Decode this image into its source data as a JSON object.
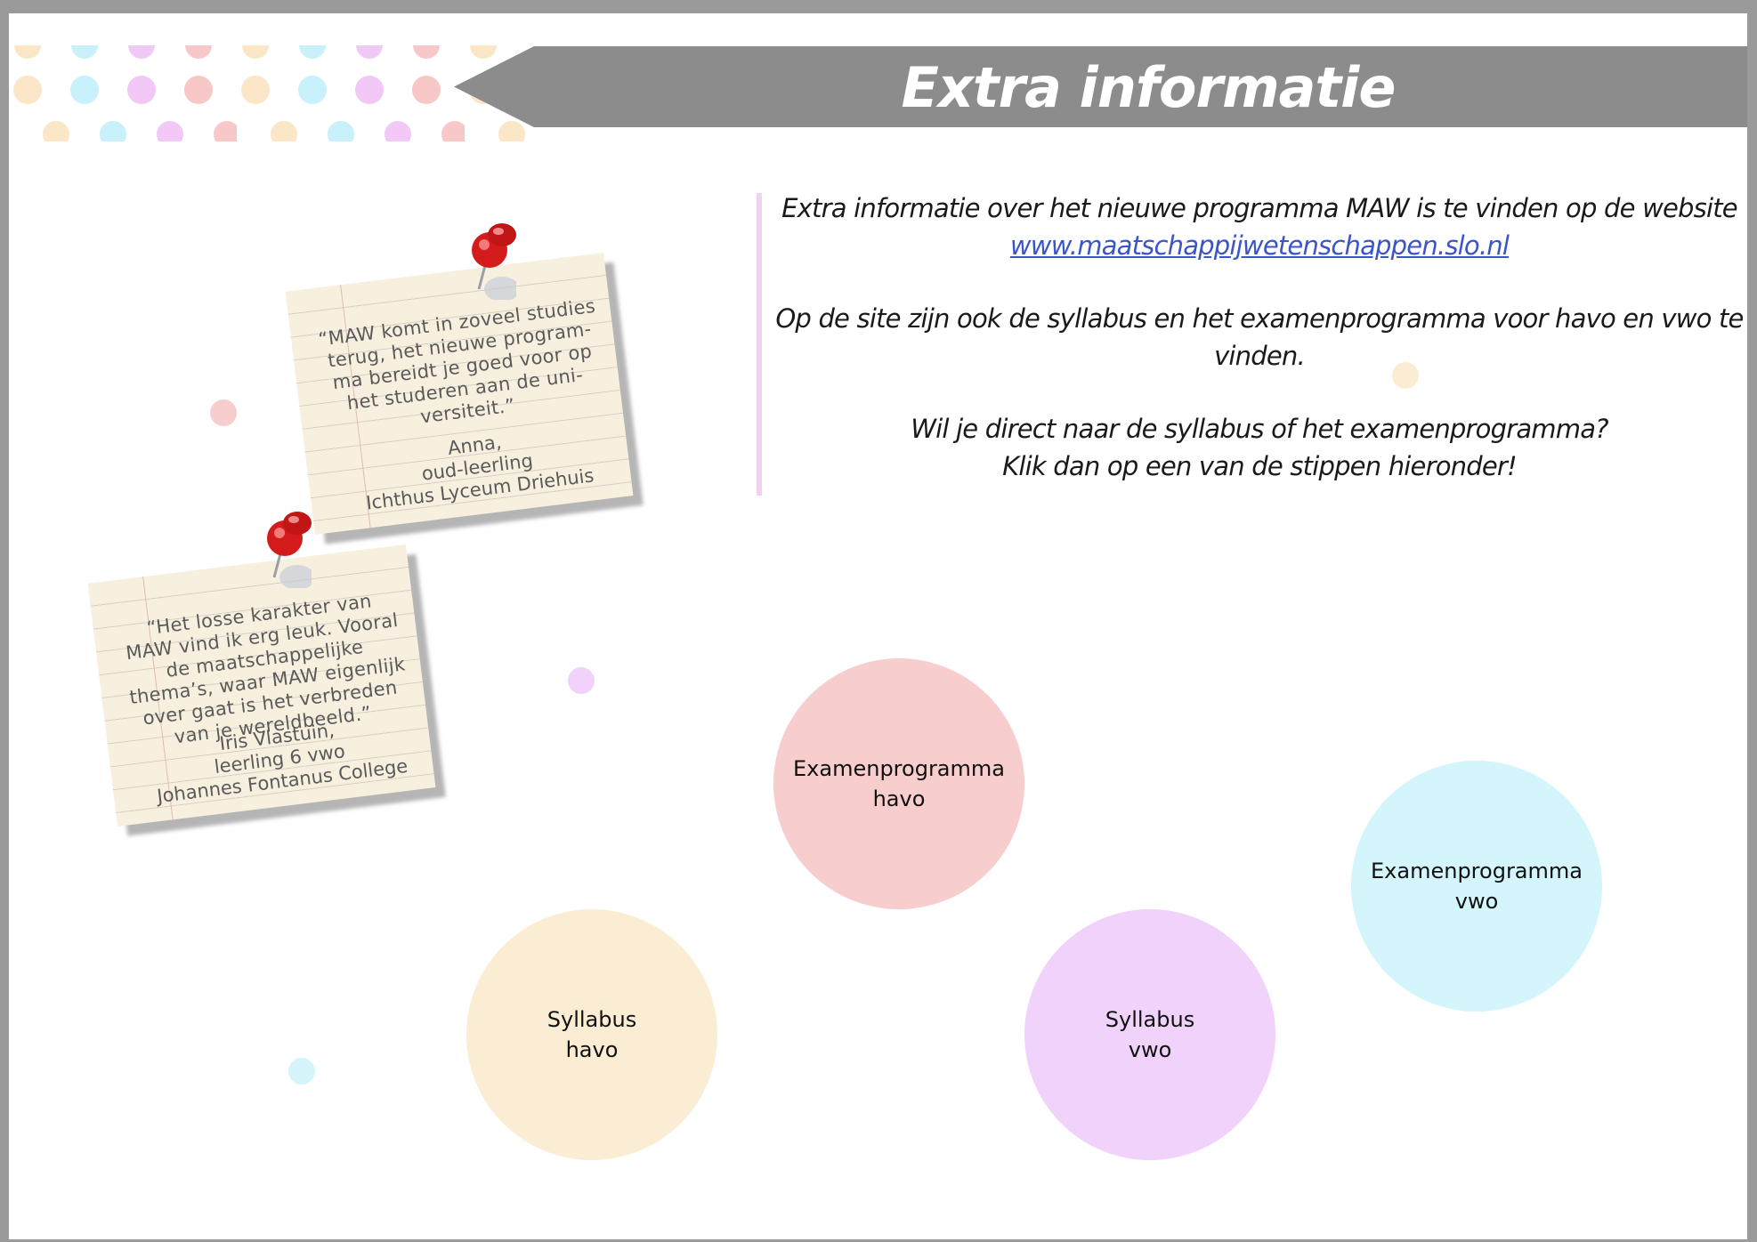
{
  "header": {
    "title": "Extra informatie"
  },
  "info": {
    "line1": "Extra informatie over het nieuwe programma MAW is te vinden op de website",
    "link_text": "www.maatschappijwetenschappen.slo.nl",
    "line2": "Op de site zijn ook de syllabus en het examenprogramma voor havo en vwo te vinden.",
    "line3a": "Wil je direct naar de syllabus of het examenprogramma?",
    "line3b": "Klik dan op een van de stippen hieronder!"
  },
  "notes": [
    {
      "quote": "“MAW komt in zoveel studies terug, het nieuwe program-ma bereidt je goed voor op het studeren aan de uni-versiteit.”",
      "author_name": "Anna,",
      "author_role": "oud-leerling",
      "author_school": "Ichthus Lyceum Driehuis"
    },
    {
      "quote": "“Het losse karakter van MAW vind ik erg leuk. Vooral de maatschappelijke thema’s, waar MAW eigenlijk over gaat is het verbreden van je wereldbeeld.”",
      "author_name": "Iris Vlastuin,",
      "author_role": "leerling 6 vwo",
      "author_school": "Johannes Fontanus College"
    }
  ],
  "buttons": {
    "exam_havo": "Examenprogramma\nhavo",
    "exam_vwo": "Examenprogramma\nvwo",
    "syllabus_havo": "Syllabus\nhavo",
    "syllabus_vwo": "Syllabus\nvwo"
  },
  "colors": {
    "pink": "#f7cdcd",
    "cyan": "#d3f5fb",
    "peach": "#fbedd4",
    "lilac": "#f1d2fa",
    "header_gray": "#8c8c8c",
    "link_blue": "#3b55c9"
  }
}
